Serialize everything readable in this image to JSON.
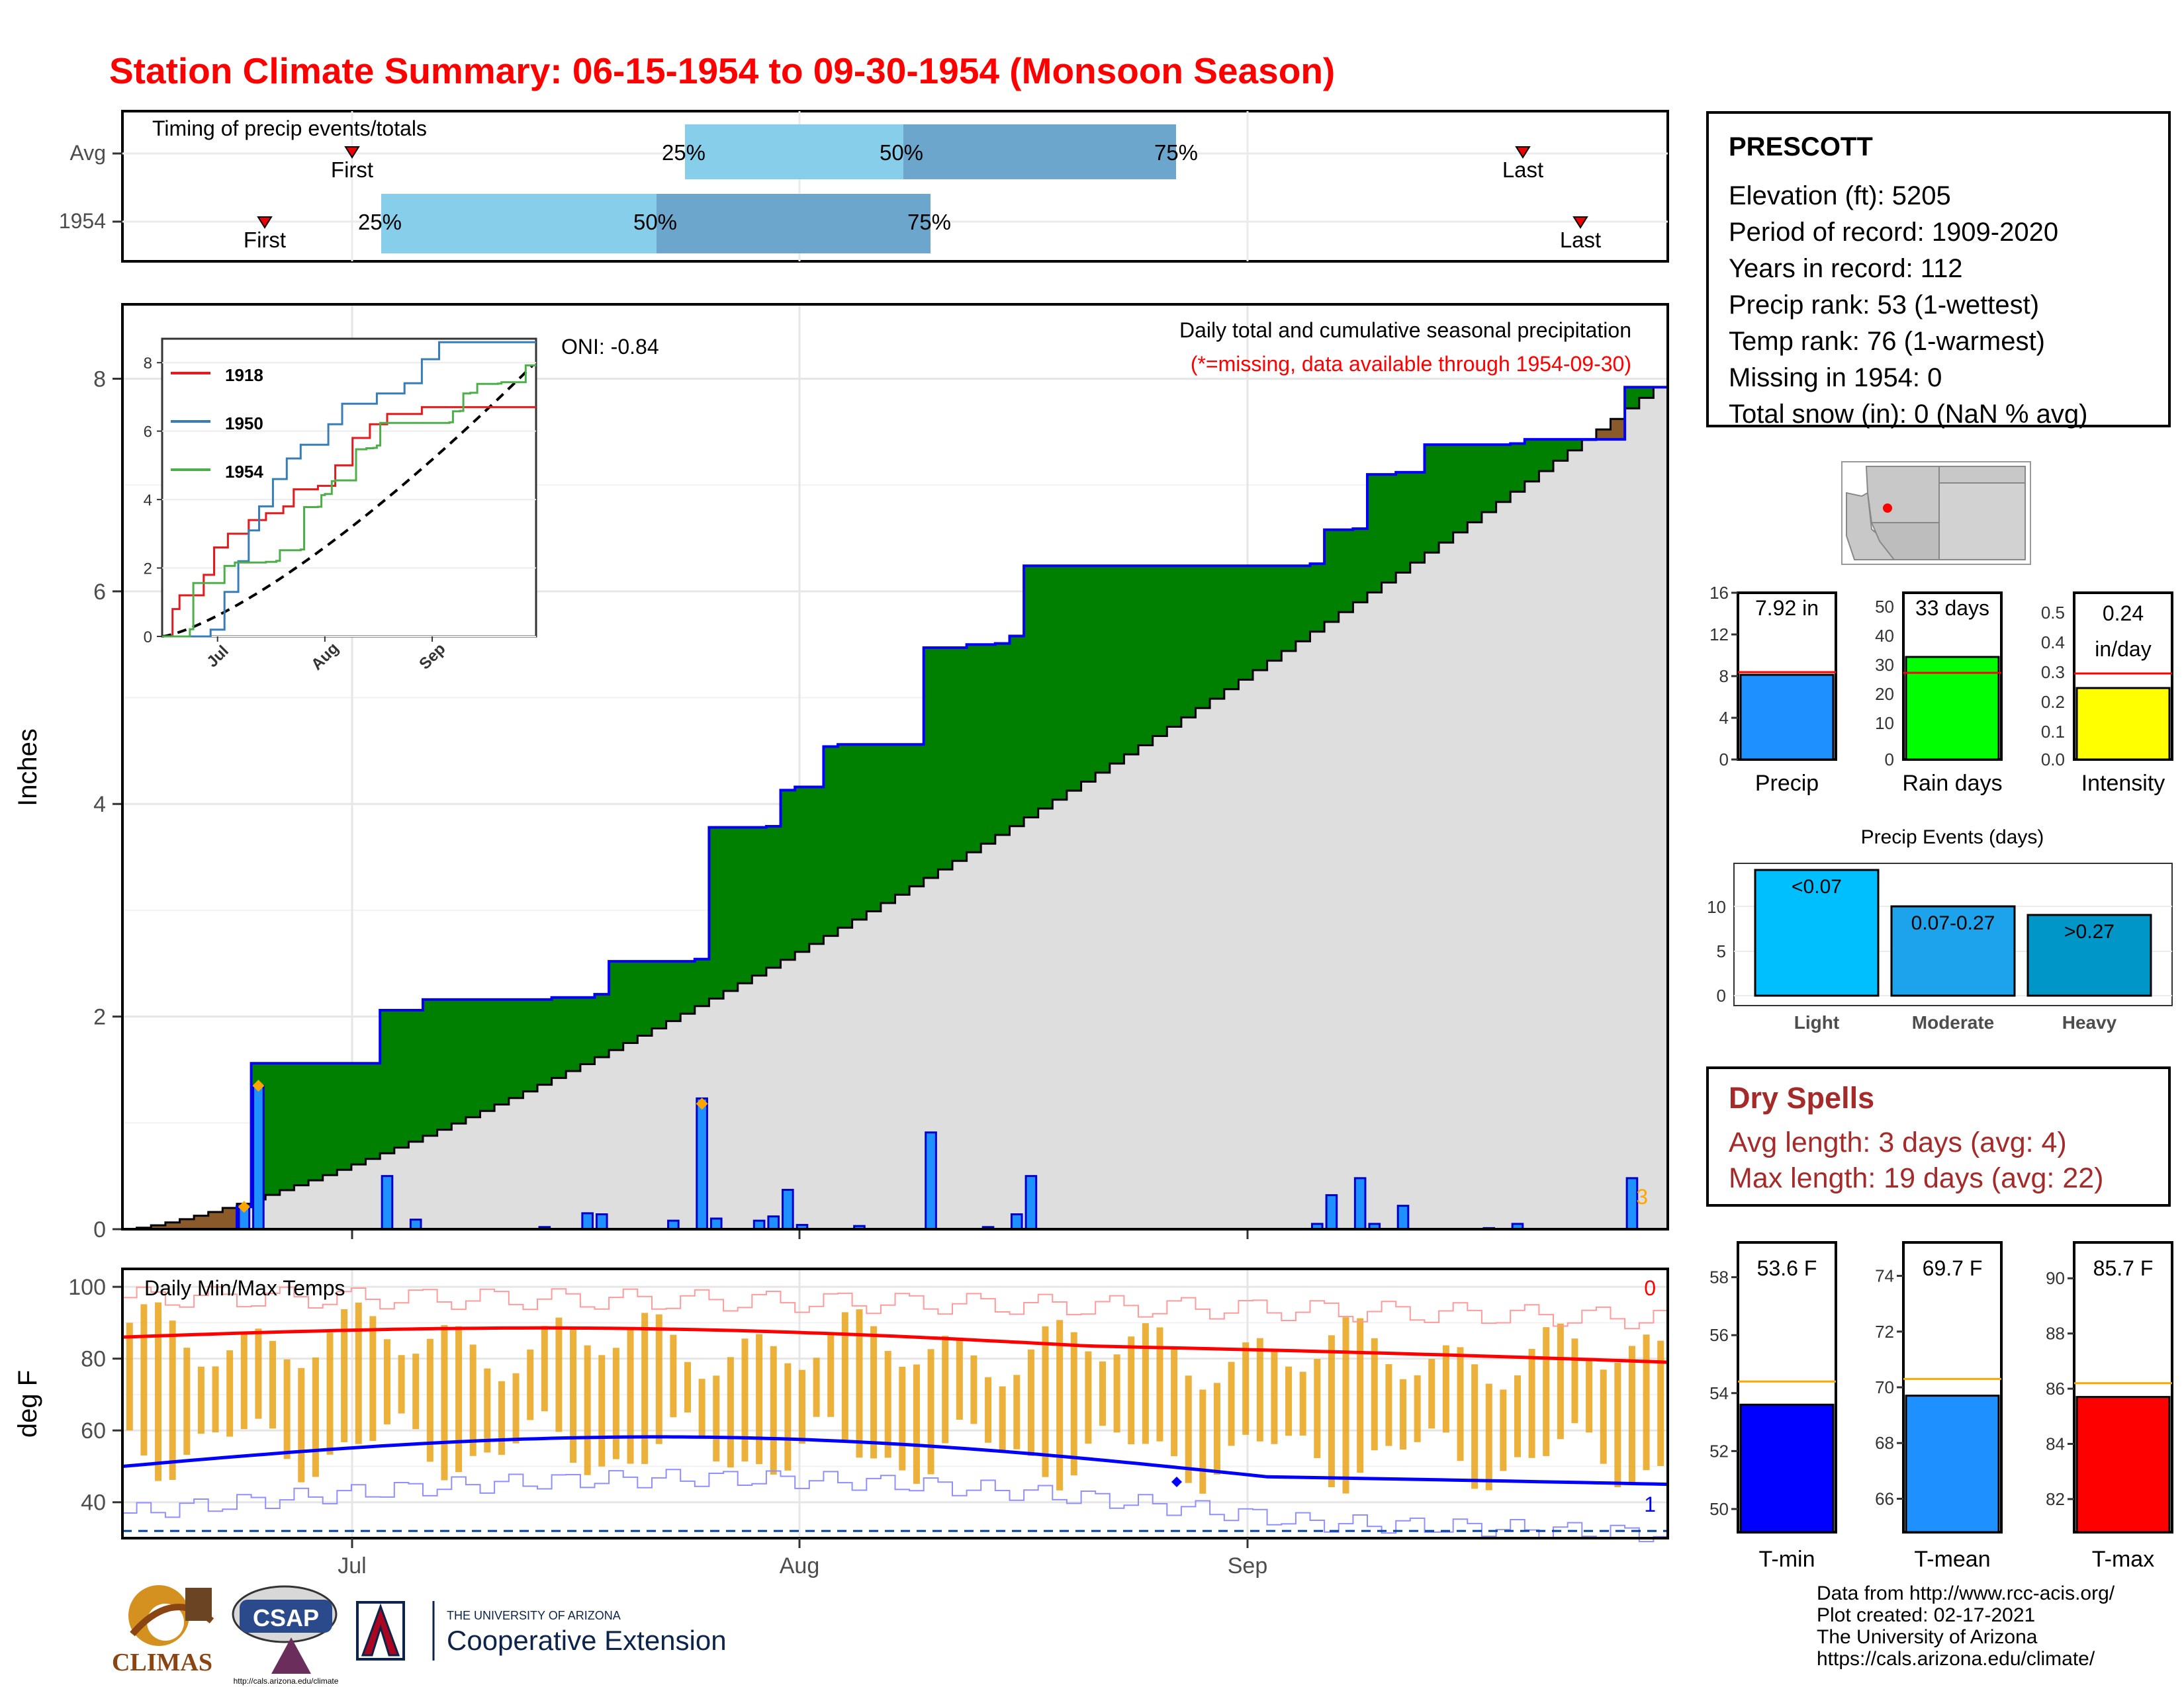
{
  "title": "Station Climate Summary: 06-15-1954 to 09-30-1954 (Monsoon Season)",
  "timing": {
    "label": "Timing of precip events/totals",
    "rows": [
      "Avg",
      "1954"
    ],
    "marks": [
      "First",
      "25%",
      "50%",
      "75%",
      "Last"
    ]
  },
  "station": {
    "name": "PRESCOTT",
    "lines": [
      "Elevation (ft): 5205",
      "Period of record: 1909-2020",
      "Years in record: 112",
      "Precip rank: 53 (1-wettest)",
      "Temp rank: 76 (1-warmest)",
      "Missing in 1954: 0",
      "Total snow (in): 0 (NaN % avg)"
    ]
  },
  "main_panel": {
    "ylabel": "Inches",
    "oni": "ONI: -0.84",
    "caption": "Daily total and cumulative seasonal precipitation",
    "missing_note": "(*=missing, data available through 1954-09-30)",
    "corner_count": "3",
    "inset_legend": [
      "1918",
      "1950",
      "1954"
    ],
    "inset_colors": {
      "1918": "#e41a1c",
      "1950": "#377eb8",
      "1954": "#4daf4a"
    }
  },
  "temp_panel": {
    "ylabel": "deg F",
    "label": "Daily Min/Max Temps",
    "top_count": "0",
    "bottom_count": "1"
  },
  "month_labels": [
    "Jul",
    "Aug",
    "Sep"
  ],
  "summary_bars": {
    "precip": {
      "value_label": "7.92 in",
      "xlabel": "Precip",
      "color": "#1e90ff"
    },
    "rain_days": {
      "value_label": "33 days",
      "xlabel": "Rain days",
      "color": "#00ff00"
    },
    "intensity": {
      "value_label_1": "0.24",
      "value_label_2": "in/day",
      "xlabel": "Intensity",
      "color": "#ffff00"
    }
  },
  "events": {
    "title": "Precip Events (days)",
    "bars": [
      {
        "label": "<0.07",
        "cat": "Light",
        "value": 14,
        "color": "#00bfff"
      },
      {
        "label": "0.07-0.27",
        "cat": "Moderate",
        "value": 10,
        "color": "#1ca3ec"
      },
      {
        "label": ">0.27",
        "cat": "Heavy",
        "value": 9,
        "color": "#0096c7"
      }
    ]
  },
  "dry_spells": {
    "title": "Dry Spells",
    "avg": "Avg length: 3 days (avg: 4)",
    "max": "Max length: 19 days (avg: 22)"
  },
  "temp_bars": [
    {
      "label": "53.6 F",
      "xlabel": "T-min",
      "color": "#0000ff",
      "value": 53.6,
      "avg": 54.4
    },
    {
      "label": "69.7 F",
      "xlabel": "T-mean",
      "color": "#1e90ff",
      "value": 69.7,
      "avg": 70.3
    },
    {
      "label": "85.7 F",
      "xlabel": "T-max",
      "color": "#ff0000",
      "value": 85.7,
      "avg": 86.2
    }
  ],
  "logos": {
    "climas": "CLIMAS",
    "csap": "CSAP",
    "csap_url": "http://cals.arizona.edu/climate",
    "ua_small": "THE UNIVERSITY OF ARIZONA",
    "ua_big": "Cooperative Extension"
  },
  "credits": [
    "Data from http://www.rcc-acis.org/",
    "Plot created: 02-17-2021",
    "The University of Arizona",
    "https://cals.arizona.edu/climate/"
  ],
  "chart_data": [
    {
      "type": "area",
      "name": "cumulative precipitation",
      "x_start": "1954-06-15",
      "x_end": "1954-09-30",
      "ylim": [
        0,
        8.7
      ],
      "yticks": [
        0,
        2,
        4,
        6,
        8
      ],
      "cumulative_1954": [
        [
          "1954-06-15",
          0.0
        ],
        [
          "1954-06-20",
          0.0
        ],
        [
          "1954-06-23",
          0.21
        ],
        [
          "1954-06-24",
          1.56
        ],
        [
          "1954-07-01",
          1.56
        ],
        [
          "1954-07-03",
          2.06
        ],
        [
          "1954-07-06",
          2.16
        ],
        [
          "1954-07-13",
          2.16
        ],
        [
          "1954-07-15",
          2.18
        ],
        [
          "1954-07-18",
          2.21
        ],
        [
          "1954-07-19",
          2.52
        ],
        [
          "1954-07-23",
          2.52
        ],
        [
          "1954-07-25",
          2.54
        ],
        [
          "1954-07-26",
          3.78
        ],
        [
          "1954-07-27",
          3.78
        ],
        [
          "1954-07-30",
          3.79
        ],
        [
          "1954-07-31",
          4.13
        ],
        [
          "1954-08-01",
          4.16
        ],
        [
          "1954-08-03",
          4.54
        ],
        [
          "1954-08-04",
          4.56
        ],
        [
          "1954-08-08",
          4.56
        ],
        [
          "1954-08-10",
          5.47
        ],
        [
          "1954-08-13",
          5.5
        ],
        [
          "1954-08-15",
          5.51
        ],
        [
          "1954-08-16",
          5.58
        ],
        [
          "1954-08-17",
          6.24
        ],
        [
          "1954-09-06",
          6.26
        ],
        [
          "1954-09-07",
          6.58
        ],
        [
          "1954-09-09",
          6.59
        ],
        [
          "1954-09-10",
          7.1
        ],
        [
          "1954-09-12",
          7.12
        ],
        [
          "1954-09-14",
          7.38
        ],
        [
          "1954-09-20",
          7.39
        ],
        [
          "1954-09-21",
          7.43
        ],
        [
          "1954-09-27",
          7.43
        ],
        [
          "1954-09-28",
          7.92
        ],
        [
          "1954-09-30",
          7.92
        ]
      ],
      "cumulative_avg_end": 7.92,
      "daily_bars": [
        [
          "1954-06-23",
          0.21
        ],
        [
          "1954-06-24",
          1.35
        ],
        [
          "1954-07-03",
          0.5
        ],
        [
          "1954-07-05",
          0.09
        ],
        [
          "1954-07-14",
          0.02
        ],
        [
          "1954-07-17",
          0.15
        ],
        [
          "1954-07-18",
          0.14
        ],
        [
          "1954-07-23",
          0.08
        ],
        [
          "1954-07-25",
          1.23
        ],
        [
          "1954-07-26",
          0.1
        ],
        [
          "1954-07-29",
          0.08
        ],
        [
          "1954-07-30",
          0.12
        ],
        [
          "1954-07-31",
          0.37
        ],
        [
          "1954-08-01",
          0.04
        ],
        [
          "1954-08-05",
          0.03
        ],
        [
          "1954-08-10",
          0.91
        ],
        [
          "1954-08-14",
          0.02
        ],
        [
          "1954-08-16",
          0.14
        ],
        [
          "1954-08-17",
          0.5
        ],
        [
          "1954-09-06",
          0.05
        ],
        [
          "1954-09-07",
          0.32
        ],
        [
          "1954-09-09",
          0.48
        ],
        [
          "1954-09-10",
          0.05
        ],
        [
          "1954-09-12",
          0.22
        ],
        [
          "1954-09-18",
          0.01
        ],
        [
          "1954-09-20",
          0.05
        ],
        [
          "1954-09-28",
          0.48
        ]
      ]
    },
    {
      "type": "line",
      "name": "inset cumulative comparison",
      "yticks": [
        0,
        2,
        4,
        6,
        8
      ],
      "series": [
        {
          "name": "1918",
          "end": 6.7
        },
        {
          "name": "1950",
          "end": 8.4
        },
        {
          "name": "1954",
          "end": 7.92
        }
      ]
    },
    {
      "type": "bar",
      "name": "daily temperatures",
      "ylim": [
        30,
        105
      ],
      "yticks": [
        40,
        60,
        80,
        100
      ],
      "threshold": 32,
      "avg_max_range": [
        86,
        79
      ],
      "avg_min_range": [
        50,
        45
      ]
    }
  ]
}
